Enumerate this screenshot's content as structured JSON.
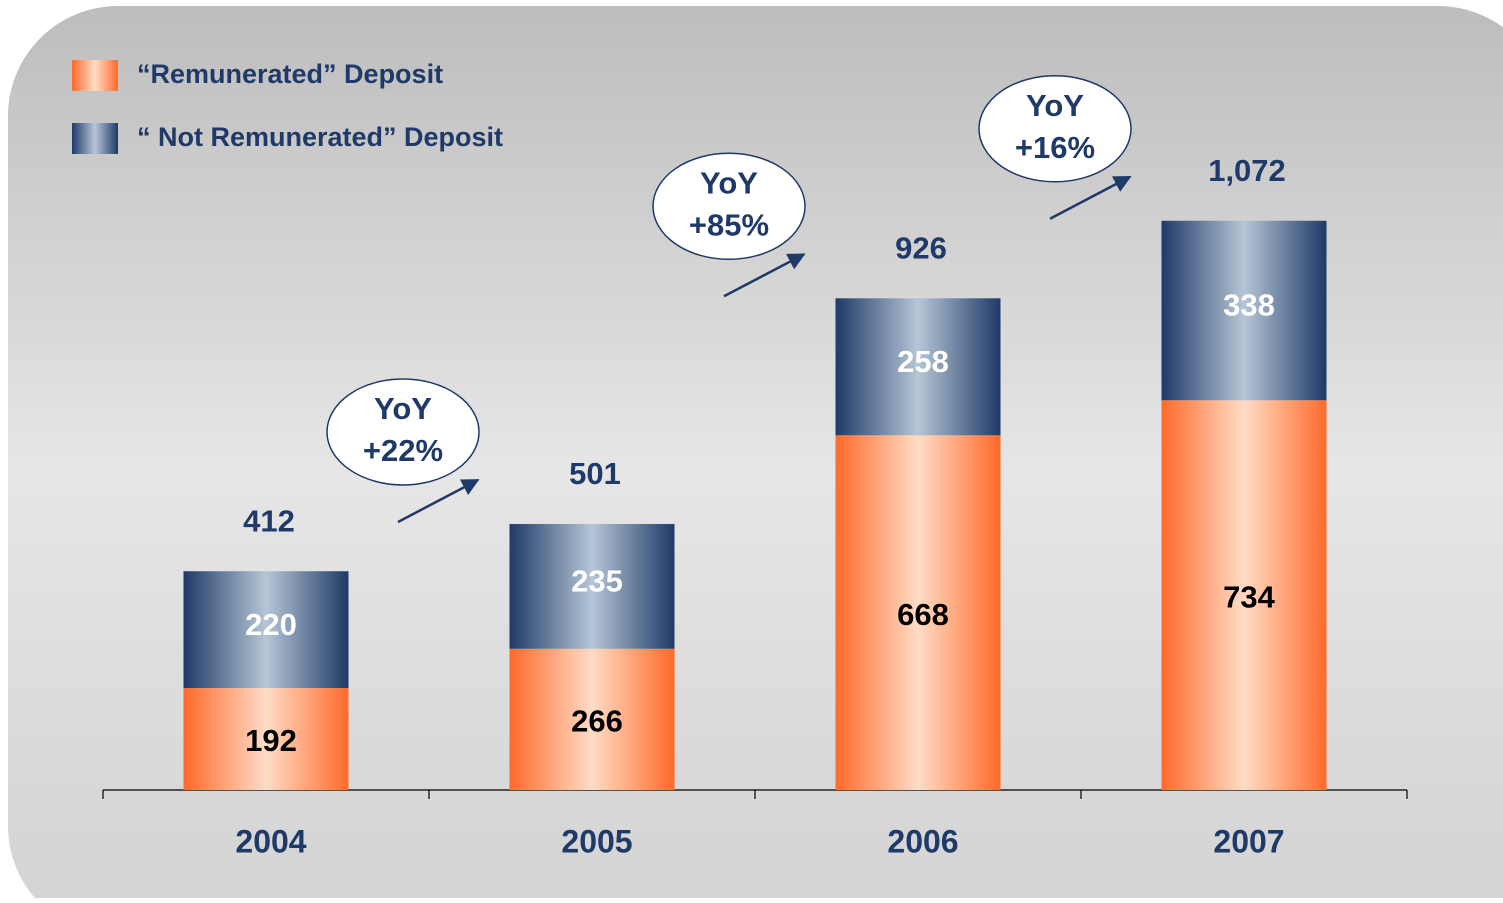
{
  "chart_data": {
    "type": "stacked_bar",
    "categories": [
      "2004",
      "2005",
      "2006",
      "2007"
    ],
    "series": [
      {
        "name": "“Remunerated” Deposit",
        "color": "#ff6a2a",
        "values": [
          192,
          266,
          668,
          734
        ]
      },
      {
        "name": "“ Not Remunerated” Deposit",
        "color": "#1f3a68",
        "values": [
          220,
          235,
          258,
          338
        ]
      }
    ],
    "totals": {
      "values": [
        412,
        501,
        926,
        1072
      ],
      "value_labels": [
        "412",
        "501",
        "926",
        "1,072"
      ]
    },
    "annotations": [
      {
        "text": "YoY",
        "change": "+22%"
      },
      {
        "text": "YoY",
        "change": "+85%"
      },
      {
        "text": "YoY",
        "change": "+16%"
      }
    ]
  }
}
